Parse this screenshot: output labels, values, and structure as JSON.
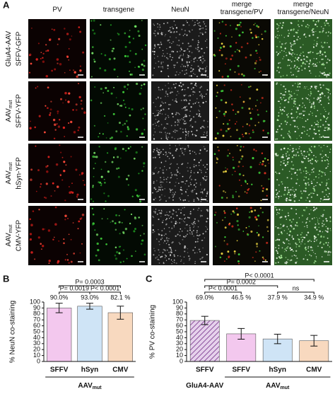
{
  "panel_label": "A",
  "panel_a": {
    "columns": [
      [
        "PV"
      ],
      [
        "transgene"
      ],
      [
        "NeuN"
      ],
      [
        "merge",
        "transgene/PV"
      ],
      [
        "merge",
        "transgene/NeuN"
      ]
    ],
    "rows": [
      {
        "name": "GluA4-AAV",
        "construct": "SFFV-GFP"
      },
      {
        "name": "AAV",
        "sub": "mut",
        "construct": "SFFV-YFP"
      },
      {
        "name": "AAV",
        "sub": "mut",
        "construct": "hSyn-YFP"
      },
      {
        "name": "AAV",
        "sub": "mut",
        "construct": "CMV-YFP"
      }
    ]
  },
  "chart_data": [
    {
      "type": "bar",
      "panel": "B",
      "ylabel": "% NeuN co-staining",
      "categories": [
        "SFFV",
        "hSyn",
        "CMV"
      ],
      "values": [
        90.0,
        93.0,
        82.1
      ],
      "value_labels": [
        "90.0%",
        "93.0%",
        "82.1 %"
      ],
      "errors": [
        8,
        5,
        11
      ],
      "colors": [
        "#f3c8ee",
        "#cfe4f6",
        "#f8d9bf"
      ],
      "hatched": [
        false,
        false,
        false
      ],
      "ylim": [
        0,
        100
      ],
      "yticks": [
        0,
        10,
        20,
        30,
        40,
        50,
        60,
        70,
        80,
        90,
        100
      ],
      "significance": [
        {
          "label": "P= 0.0003",
          "between": [
            0,
            2
          ]
        },
        {
          "label": "P= 0.0019",
          "between": [
            0,
            1
          ]
        },
        {
          "label": "P< 0.0001",
          "between": [
            1,
            2
          ]
        }
      ],
      "groups": [
        {
          "label": "AAV",
          "sub": "mut",
          "between": [
            0,
            2
          ]
        }
      ]
    },
    {
      "type": "bar",
      "panel": "C",
      "ylabel": "% PV co-staining",
      "categories": [
        "SFFV",
        "SFFV",
        "hSyn",
        "CMV"
      ],
      "values": [
        69.0,
        46.5,
        37.9,
        34.9
      ],
      "value_labels": [
        "69.0%",
        "46.5 %",
        "37.9 %",
        "34.9 %"
      ],
      "errors": [
        7,
        9,
        8,
        9
      ],
      "colors": [
        "#c9a3d6",
        "#f3c8ee",
        "#cfe4f6",
        "#f8d9bf"
      ],
      "hatched": [
        true,
        false,
        false,
        false
      ],
      "ylim": [
        0,
        100
      ],
      "yticks": [
        0,
        10,
        20,
        30,
        40,
        50,
        60,
        70,
        80,
        90,
        100
      ],
      "significance": [
        {
          "label": "P< 0.0001",
          "between": [
            0,
            3
          ]
        },
        {
          "label": "P= 0.0002",
          "between": [
            0,
            2
          ]
        },
        {
          "label": "P< 0.0001",
          "between": [
            0,
            1
          ]
        },
        {
          "label": "ns",
          "between": [
            2,
            3
          ]
        }
      ],
      "groups": [
        {
          "label": "GluA4-AAV",
          "between": [
            0,
            0
          ]
        },
        {
          "label": "AAV",
          "sub": "mut",
          "between": [
            1,
            3
          ]
        }
      ]
    }
  ]
}
